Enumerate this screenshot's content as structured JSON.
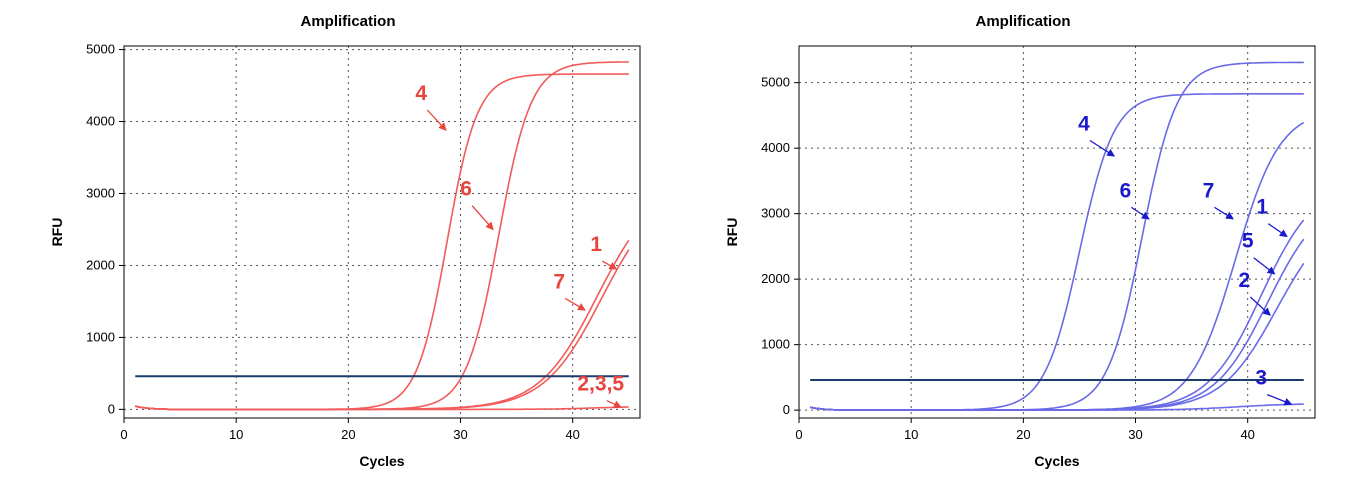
{
  "colors": {
    "left_curve": "#f25b5b",
    "left_label": "#e8453c",
    "right_curve": "#6a6ae8",
    "right_label": "#1a1acc",
    "threshold": "#1b3d6e",
    "grid": "#555555"
  },
  "chart_data": [
    {
      "type": "line",
      "title": "Amplification",
      "xlabel": "Cycles",
      "ylabel": "RFU",
      "xlim": [
        0,
        46
      ],
      "ylim": [
        -120,
        5050
      ],
      "xticks": [
        0,
        10,
        20,
        30,
        40
      ],
      "yticks": [
        0,
        1000,
        2000,
        3000,
        4000,
        5000
      ],
      "grid": true,
      "threshold": 460,
      "series": [
        {
          "id": "4",
          "plateau": 4660,
          "midpoint": 28.8,
          "slope": 1.35
        },
        {
          "id": "6",
          "plateau": 4830,
          "midpoint": 33.4,
          "slope": 1.45
        },
        {
          "id": "1",
          "plateau": 3150,
          "midpoint": 42.2,
          "slope": 2.6
        },
        {
          "id": "7",
          "plateau": 3100,
          "midpoint": 42.6,
          "slope": 2.6
        },
        {
          "id": "2,3,5",
          "plateau": 40,
          "midpoint": 42.0,
          "slope": 2.0
        }
      ],
      "annotations": [
        {
          "text": "4",
          "x": 28.7,
          "y": 3880,
          "tx": 26.5,
          "ty": 4300
        },
        {
          "text": "6",
          "x": 32.9,
          "y": 2500,
          "tx": 30.5,
          "ty": 2970
        },
        {
          "text": "1",
          "x": 43.9,
          "y": 1950,
          "tx": 42.1,
          "ty": 2200
        },
        {
          "text": "7",
          "x": 41.1,
          "y": 1380,
          "tx": 38.8,
          "ty": 1680
        },
        {
          "text": "2,3,5",
          "x": 44.3,
          "y": 30,
          "tx": 42.5,
          "ty": 260
        }
      ]
    },
    {
      "type": "line",
      "title": "Amplification",
      "xlabel": "Cycles",
      "ylabel": "RFU",
      "xlim": [
        0,
        46
      ],
      "ylim": [
        -120,
        5560
      ],
      "xticks": [
        0,
        10,
        20,
        30,
        40
      ],
      "yticks": [
        0,
        1000,
        2000,
        3000,
        4000,
        5000
      ],
      "grid": true,
      "threshold": 460,
      "series": [
        {
          "id": "4",
          "plateau": 4830,
          "midpoint": 25.0,
          "slope": 1.55
        },
        {
          "id": "6",
          "plateau": 5310,
          "midpoint": 30.6,
          "slope": 1.55
        },
        {
          "id": "7",
          "plateau": 4600,
          "midpoint": 38.9,
          "slope": 2.0
        },
        {
          "id": "1",
          "plateau": 3500,
          "midpoint": 41.2,
          "slope": 2.4
        },
        {
          "id": "5",
          "plateau": 3300,
          "midpoint": 41.8,
          "slope": 2.4
        },
        {
          "id": "2",
          "plateau": 3100,
          "midpoint": 42.6,
          "slope": 2.5
        },
        {
          "id": "3",
          "plateau": 100,
          "midpoint": 39.0,
          "slope": 2.5
        }
      ],
      "annotations": [
        {
          "text": "4",
          "x": 28.1,
          "y": 3880,
          "tx": 25.4,
          "ty": 4270
        },
        {
          "text": "6",
          "x": 31.2,
          "y": 2920,
          "tx": 29.1,
          "ty": 3250
        },
        {
          "text": "7",
          "x": 38.7,
          "y": 2920,
          "tx": 36.5,
          "ty": 3250
        },
        {
          "text": "1",
          "x": 43.5,
          "y": 2650,
          "tx": 41.3,
          "ty": 3000
        },
        {
          "text": "5",
          "x": 42.4,
          "y": 2080,
          "tx": 40.0,
          "ty": 2480
        },
        {
          "text": "2",
          "x": 42.0,
          "y": 1450,
          "tx": 39.7,
          "ty": 1880
        },
        {
          "text": "3",
          "x": 43.9,
          "y": 90,
          "tx": 41.2,
          "ty": 390
        }
      ]
    }
  ]
}
